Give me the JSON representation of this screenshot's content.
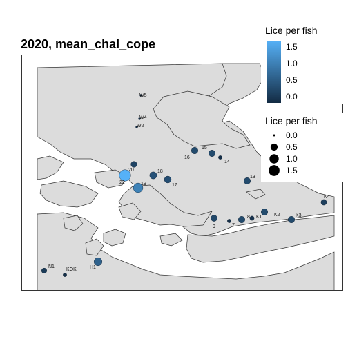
{
  "title": "2020, mean_chal_cope",
  "legend_color": {
    "title": "Lice per fish",
    "ticks": [
      "1.5",
      "1.0",
      "0.5",
      "0.0"
    ],
    "colors": [
      "#56B1F7",
      "#132B43"
    ],
    "range": [
      0,
      1.7
    ]
  },
  "legend_size": {
    "title": "Lice per fish",
    "items": [
      {
        "label": "0.0",
        "value": 0.0
      },
      {
        "label": "0.5",
        "value": 0.5
      },
      {
        "label": "1.0",
        "value": 1.0
      },
      {
        "label": "1.5",
        "value": 1.5
      }
    ]
  },
  "map_colors": {
    "land": "#dcdcdc",
    "water": "#ffffff",
    "outline": "#333333"
  },
  "sites": [
    {
      "id": "W5",
      "value": 0.0
    },
    {
      "id": "W4",
      "value": 0.0
    },
    {
      "id": "W2",
      "value": 0.0
    },
    {
      "id": "15",
      "value": 0.4
    },
    {
      "id": "16",
      "value": 0.4
    },
    {
      "id": "14",
      "value": 0.05
    },
    {
      "id": "20",
      "value": 0.3
    },
    {
      "id": "18",
      "value": 0.5
    },
    {
      "id": "17",
      "value": 0.45
    },
    {
      "id": "19",
      "value": 1.1
    },
    {
      "id": "22",
      "value": 1.7
    },
    {
      "id": "13",
      "value": 0.4
    },
    {
      "id": "K4",
      "value": 0.25
    },
    {
      "id": "K3",
      "value": 0.4
    },
    {
      "id": "K2",
      "value": 0.4
    },
    {
      "id": "K1",
      "value": 0.1
    },
    {
      "id": "8",
      "value": 0.4
    },
    {
      "id": "7",
      "value": 0.05
    },
    {
      "id": "9",
      "value": 0.35
    },
    {
      "id": "H1",
      "value": 0.7
    },
    {
      "id": "N1",
      "value": 0.2
    },
    {
      "id": "KOK",
      "value": 0.05
    }
  ]
}
